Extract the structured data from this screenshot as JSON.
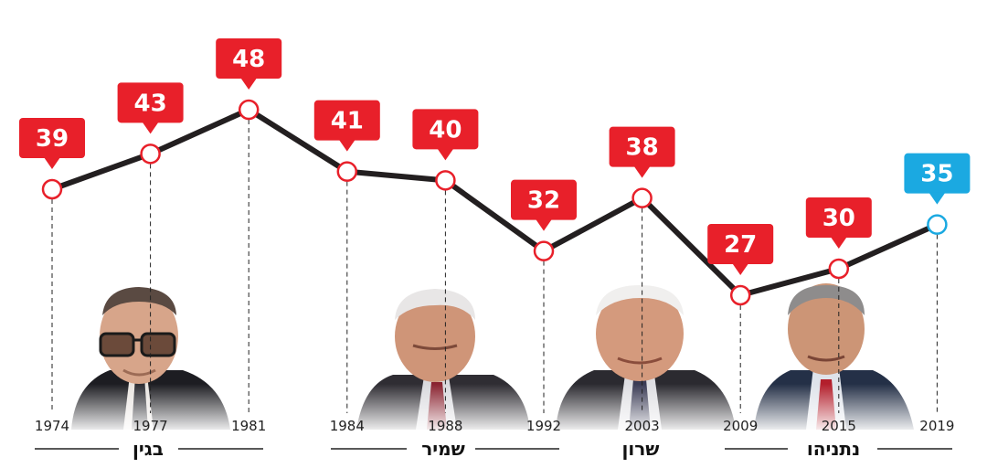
{
  "chart_data": {
    "type": "line",
    "x": [
      "1974",
      "1977",
      "1981",
      "1984",
      "1988",
      "1992",
      "2003",
      "2009",
      "2015",
      "2019"
    ],
    "values": [
      39,
      43,
      48,
      41,
      40,
      32,
      38,
      27,
      30,
      35
    ],
    "value_labels": [
      "39",
      "43",
      "48",
      "41",
      "40",
      "32",
      "38",
      "27",
      "30",
      "35"
    ],
    "ylim": [
      20,
      52
    ],
    "grid": false,
    "line_color": "#231f20",
    "marker_color": "#e8202a",
    "highlight_index": 9,
    "highlight_color": "#1ba9e1",
    "leaders": [
      {
        "name": "בגין",
        "portrait": "begin-portrait"
      },
      {
        "name": "שמיר",
        "portrait": "shamir-portrait"
      },
      {
        "name": "שרון",
        "portrait": "sharon-portrait"
      },
      {
        "name": "נתניהו",
        "portrait": "netanyahu-portrait"
      }
    ]
  }
}
